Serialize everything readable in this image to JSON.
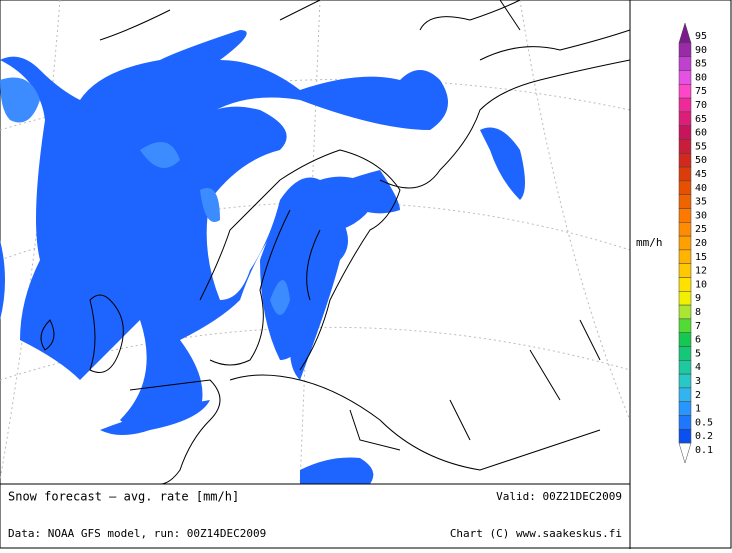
{
  "footer": {
    "title": "Snow forecast – avg. rate [mm/h]",
    "valid": "Valid: 00Z21DEC2009",
    "source": "Data: NOAA GFS model, run: 00Z14DEC2009",
    "credit": "Chart (C) www.saakeskus.fi"
  },
  "legend": {
    "unit": "mm/h",
    "levels": [
      {
        "label": "95",
        "color": "#7a1c8c"
      },
      {
        "label": "90",
        "color": "#9a2aa8"
      },
      {
        "label": "85",
        "color": "#c040d0"
      },
      {
        "label": "80",
        "color": "#e650e6"
      },
      {
        "label": "75",
        "color": "#ff46c8"
      },
      {
        "label": "70",
        "color": "#f0289a"
      },
      {
        "label": "65",
        "color": "#dc1e78"
      },
      {
        "label": "60",
        "color": "#c8145a"
      },
      {
        "label": "55",
        "color": "#c81e3c"
      },
      {
        "label": "50",
        "color": "#d2281e"
      },
      {
        "label": "45",
        "color": "#dc3c0a"
      },
      {
        "label": "40",
        "color": "#e65000"
      },
      {
        "label": "35",
        "color": "#f06400"
      },
      {
        "label": "30",
        "color": "#ff7800"
      },
      {
        "label": "25",
        "color": "#ff8c00"
      },
      {
        "label": "20",
        "color": "#ffa000"
      },
      {
        "label": "15",
        "color": "#ffb400"
      },
      {
        "label": "12",
        "color": "#ffc800"
      },
      {
        "label": "10",
        "color": "#ffe100"
      },
      {
        "label": "9",
        "color": "#f0f000"
      },
      {
        "label": "8",
        "color": "#aae632"
      },
      {
        "label": "7",
        "color": "#50dc32"
      },
      {
        "label": "6",
        "color": "#14c850"
      },
      {
        "label": "5",
        "color": "#14c878"
      },
      {
        "label": "4",
        "color": "#1ec8a0"
      },
      {
        "label": "3",
        "color": "#28c8c8"
      },
      {
        "label": "2",
        "color": "#32b4f0"
      },
      {
        "label": "1",
        "color": "#2896ff"
      },
      {
        "label": "0.5",
        "color": "#1e78ff"
      },
      {
        "label": "0.2",
        "color": "#0a50f0"
      },
      {
        "label": "0.1",
        "color": "#ffffff"
      }
    ]
  }
}
